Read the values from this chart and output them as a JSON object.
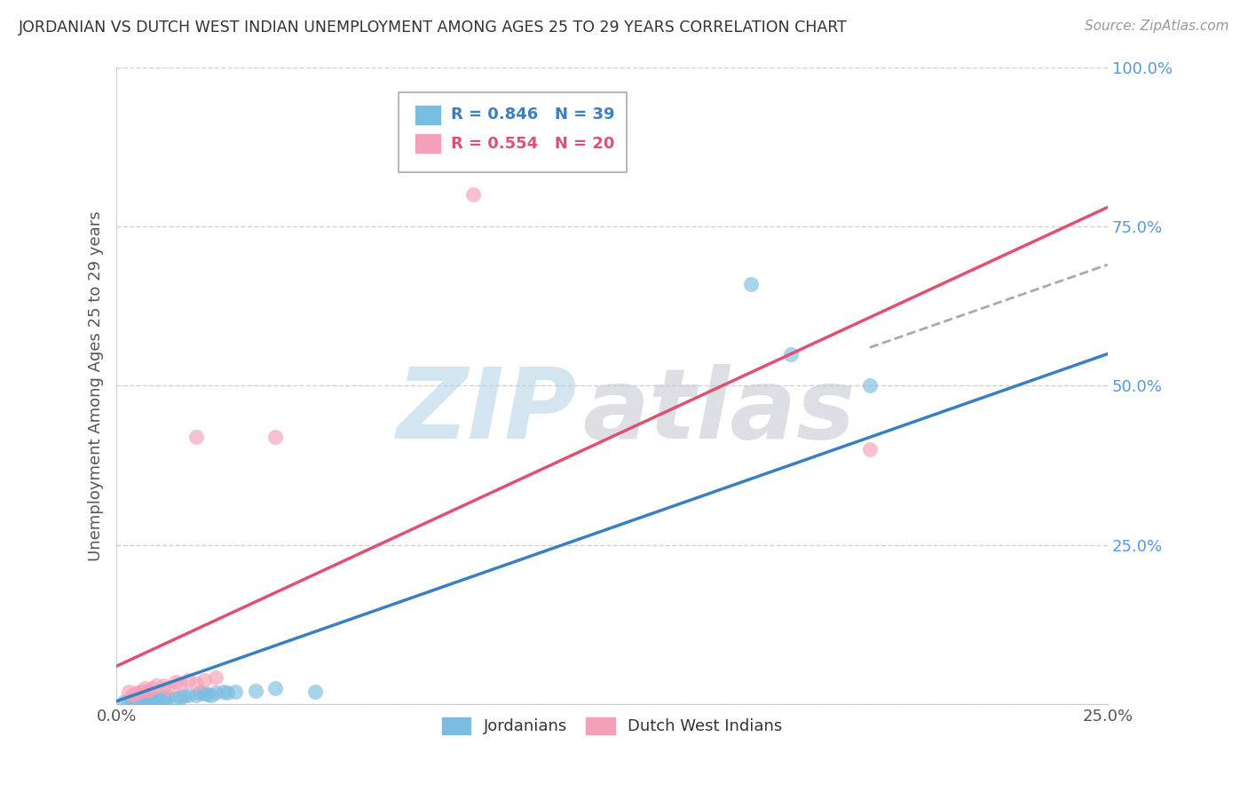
{
  "title": "JORDANIAN VS DUTCH WEST INDIAN UNEMPLOYMENT AMONG AGES 25 TO 29 YEARS CORRELATION CHART",
  "source": "Source: ZipAtlas.com",
  "ylabel_label": "Unemployment Among Ages 25 to 29 years",
  "legend_blue_label": "Jordanians",
  "legend_pink_label": "Dutch West Indians",
  "legend_blue_R": "R = 0.846",
  "legend_blue_N": "N = 39",
  "legend_pink_R": "R = 0.554",
  "legend_pink_N": "N = 20",
  "blue_color": "#7bbde0",
  "pink_color": "#f4a0b8",
  "blue_line_color": "#3a7fc1",
  "pink_line_color": "#e05070",
  "legend_R_blue_color": "#3a7fc1",
  "legend_R_pink_color": "#e05070",
  "watermark_zip_color": "#b8d4ea",
  "watermark_atlas_color": "#c8c8d4",
  "blue_points": [
    [
      0.002,
      0.005
    ],
    [
      0.003,
      0.005
    ],
    [
      0.004,
      0.003
    ],
    [
      0.004,
      0.01
    ],
    [
      0.005,
      0.005
    ],
    [
      0.005,
      0.007
    ],
    [
      0.006,
      0.005
    ],
    [
      0.006,
      0.008
    ],
    [
      0.007,
      0.008
    ],
    [
      0.007,
      0.006
    ],
    [
      0.008,
      0.007
    ],
    [
      0.008,
      0.01
    ],
    [
      0.009,
      0.007
    ],
    [
      0.009,
      0.01
    ],
    [
      0.01,
      0.005
    ],
    [
      0.01,
      0.008
    ],
    [
      0.01,
      0.01
    ],
    [
      0.012,
      0.01
    ],
    [
      0.012,
      0.008
    ],
    [
      0.013,
      0.012
    ],
    [
      0.015,
      0.01
    ],
    [
      0.016,
      0.012
    ],
    [
      0.017,
      0.013
    ],
    [
      0.018,
      0.014
    ],
    [
      0.02,
      0.015
    ],
    [
      0.021,
      0.018
    ],
    [
      0.022,
      0.017
    ],
    [
      0.023,
      0.016
    ],
    [
      0.024,
      0.015
    ],
    [
      0.025,
      0.018
    ],
    [
      0.027,
      0.02
    ],
    [
      0.028,
      0.018
    ],
    [
      0.03,
      0.02
    ],
    [
      0.035,
      0.022
    ],
    [
      0.04,
      0.025
    ],
    [
      0.05,
      0.02
    ],
    [
      0.16,
      0.66
    ],
    [
      0.17,
      0.55
    ],
    [
      0.19,
      0.5
    ]
  ],
  "pink_points": [
    [
      0.003,
      0.02
    ],
    [
      0.004,
      0.015
    ],
    [
      0.005,
      0.018
    ],
    [
      0.006,
      0.02
    ],
    [
      0.007,
      0.025
    ],
    [
      0.008,
      0.022
    ],
    [
      0.009,
      0.025
    ],
    [
      0.01,
      0.03
    ],
    [
      0.012,
      0.03
    ],
    [
      0.013,
      0.025
    ],
    [
      0.015,
      0.035
    ],
    [
      0.016,
      0.032
    ],
    [
      0.018,
      0.038
    ],
    [
      0.02,
      0.032
    ],
    [
      0.022,
      0.038
    ],
    [
      0.025,
      0.042
    ],
    [
      0.04,
      0.42
    ],
    [
      0.09,
      0.8
    ],
    [
      0.19,
      0.4
    ],
    [
      0.02,
      0.42
    ]
  ],
  "xlim": [
    0.0,
    0.25
  ],
  "ylim": [
    0.0,
    1.0
  ],
  "blue_line_x": [
    0.0,
    0.25
  ],
  "blue_line_y": [
    0.005,
    0.55
  ],
  "pink_line_x": [
    0.0,
    0.25
  ],
  "pink_line_y": [
    0.06,
    0.78
  ],
  "dash_line_x": [
    0.19,
    0.25
  ],
  "dash_line_y": [
    0.56,
    0.69
  ],
  "background_color": "#ffffff",
  "grid_color": "#cccccc"
}
